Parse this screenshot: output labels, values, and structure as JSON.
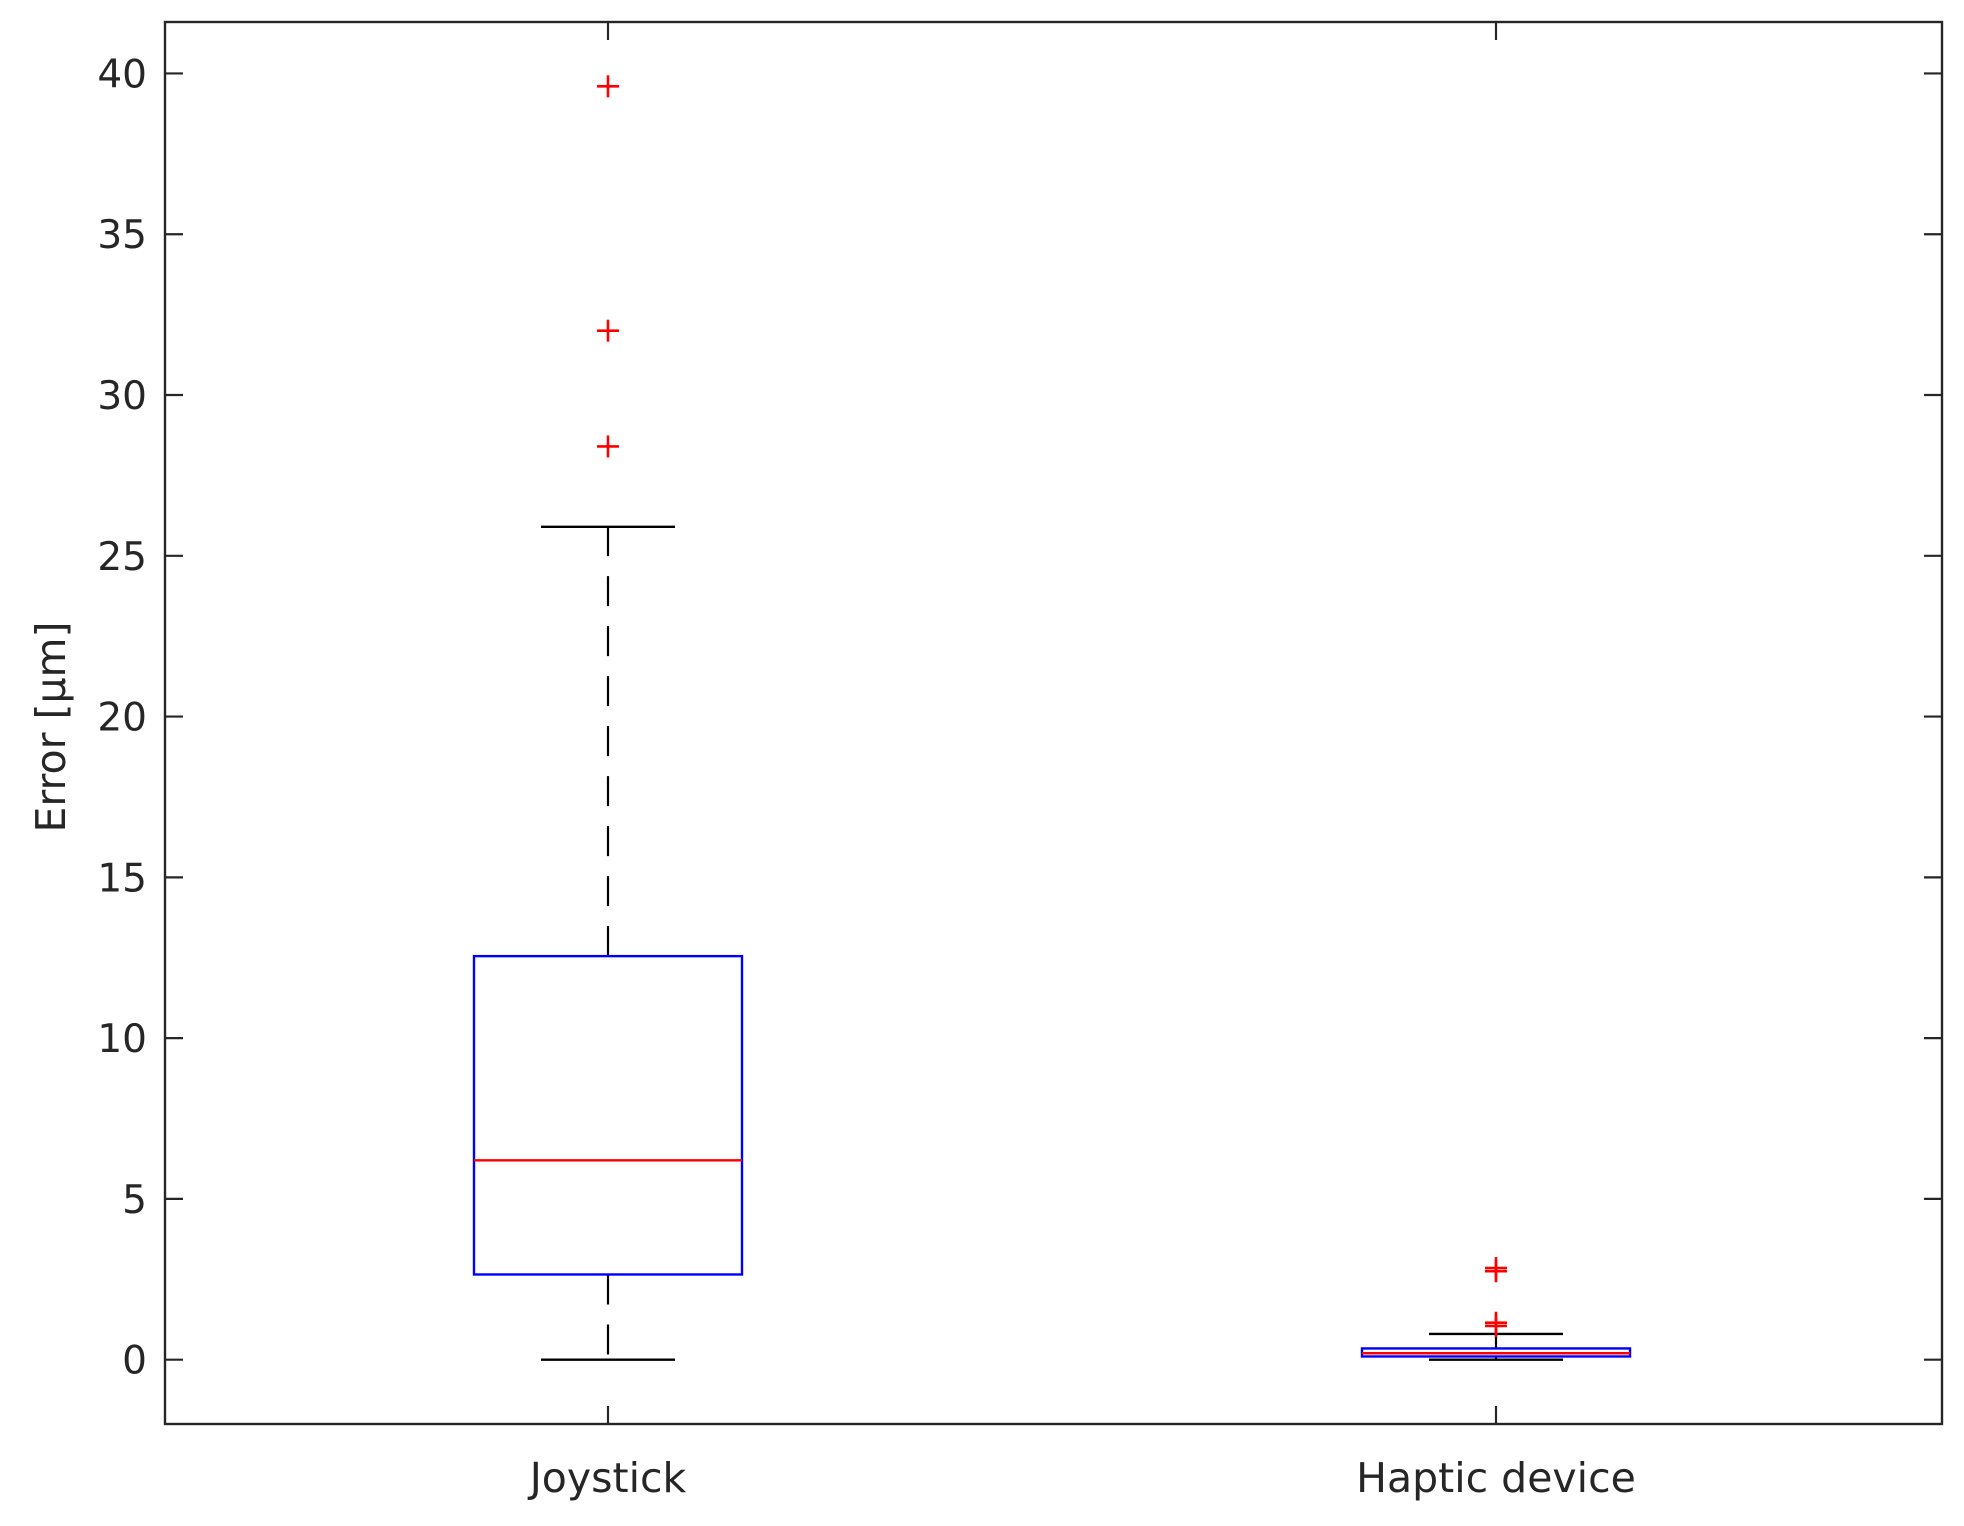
{
  "chart_data": {
    "type": "box",
    "xlabel": "",
    "ylabel": "Error [µm]",
    "ylim": [
      -2,
      41.6
    ],
    "yticks": [
      0,
      5,
      10,
      15,
      20,
      25,
      30,
      35,
      40
    ],
    "ytick_labels": [
      "0",
      "5",
      "10",
      "15",
      "20",
      "25",
      "30",
      "35",
      "40"
    ],
    "categories": [
      "Joystick",
      "Haptic device"
    ],
    "boxes": [
      {
        "name": "Joystick",
        "whisker_low": 0,
        "q1": 2.65,
        "median": 6.2,
        "q3": 12.55,
        "whisker_high": 25.9,
        "outliers": [
          28.4,
          32.0,
          39.6
        ]
      },
      {
        "name": "Haptic device",
        "whisker_low": 0.0,
        "q1": 0.1,
        "median": 0.2,
        "q3": 0.35,
        "whisker_high": 0.8,
        "outliers": [
          1.05,
          1.15,
          2.75,
          2.85
        ]
      }
    ],
    "grid": false,
    "legend": "none",
    "colors": {
      "box": "#0000ff",
      "median": "#ff0000",
      "outlier": "#ff0000",
      "whisker": "#000000",
      "axis": "#262626"
    }
  }
}
